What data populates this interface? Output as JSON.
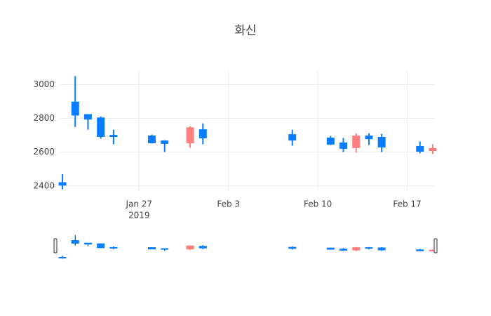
{
  "chart_data": {
    "type": "candlestick",
    "title": "화신",
    "x": [
      "2019-01-21",
      "2019-01-22",
      "2019-01-23",
      "2019-01-24",
      "2019-01-25",
      "2019-01-28",
      "2019-01-29",
      "2019-01-31",
      "2019-02-01",
      "2019-02-08",
      "2019-02-11",
      "2019-02-12",
      "2019-02-13",
      "2019-02-14",
      "2019-02-15",
      "2019-02-18",
      "2019-02-19"
    ],
    "open": [
      2420,
      2897,
      2823,
      2803,
      2700,
      2696,
      2667,
      2655,
      2733,
      2704,
      2684,
      2655,
      2626,
      2696,
      2688,
      2634,
      2609
    ],
    "high": [
      2470,
      3050,
      2823,
      2811,
      2733,
      2704,
      2671,
      2753,
      2770,
      2733,
      2696,
      2684,
      2712,
      2712,
      2708,
      2663,
      2647
    ],
    "low": [
      2380,
      2749,
      2733,
      2679,
      2647,
      2651,
      2601,
      2626,
      2647,
      2638,
      2642,
      2601,
      2597,
      2642,
      2601,
      2593,
      2589
    ],
    "close": [
      2404,
      2819,
      2795,
      2692,
      2692,
      2655,
      2651,
      2745,
      2684,
      2671,
      2647,
      2622,
      2696,
      2679,
      2630,
      2605,
      2622
    ],
    "increasing_color": "#ff7f7f",
    "decreasing_color": "#0a7cff",
    "xlim": [
      "2019-01-20T20:00",
      "2019-02-19T04:00"
    ],
    "xticks": [
      {
        "value": "2019-01-27",
        "label": "Jan 27"
      },
      {
        "value": "2019-02-03",
        "label": "Feb 3"
      },
      {
        "value": "2019-02-10",
        "label": "Feb 10"
      },
      {
        "value": "2019-02-17",
        "label": "Feb 17"
      }
    ],
    "x_year": "2019",
    "ylim": [
      2370,
      3085
    ],
    "yticks": [
      2400,
      2600,
      2800,
      3000
    ],
    "grid": true,
    "rangeslider": true
  }
}
